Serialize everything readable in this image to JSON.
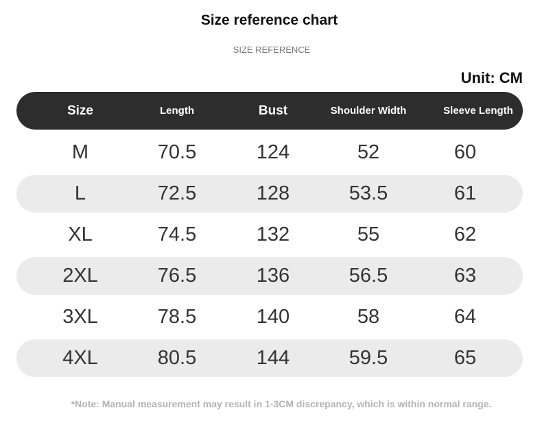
{
  "title": "Size reference chart",
  "subtitle": "SIZE REFERENCE",
  "unit": "Unit: CM",
  "headers": [
    "Size",
    "Length",
    "Bust",
    "Shoulder Width",
    "Sleeve Length"
  ],
  "rows": [
    [
      "M",
      "70.5",
      "124",
      "52",
      "60"
    ],
    [
      "L",
      "72.5",
      "128",
      "53.5",
      "61"
    ],
    [
      "XL",
      "74.5",
      "132",
      "55",
      "62"
    ],
    [
      "2XL",
      "76.5",
      "136",
      "56.5",
      "63"
    ],
    [
      "3XL",
      "78.5",
      "140",
      "58",
      "64"
    ],
    [
      "4XL",
      "80.5",
      "144",
      "59.5",
      "65"
    ]
  ],
  "note": "*Note: Manual measurement may result in 1-3CM discrepancy, which is within normal range.",
  "colors": {
    "header_bg": "#2d2d2d",
    "stripe": "#ebebeb"
  }
}
